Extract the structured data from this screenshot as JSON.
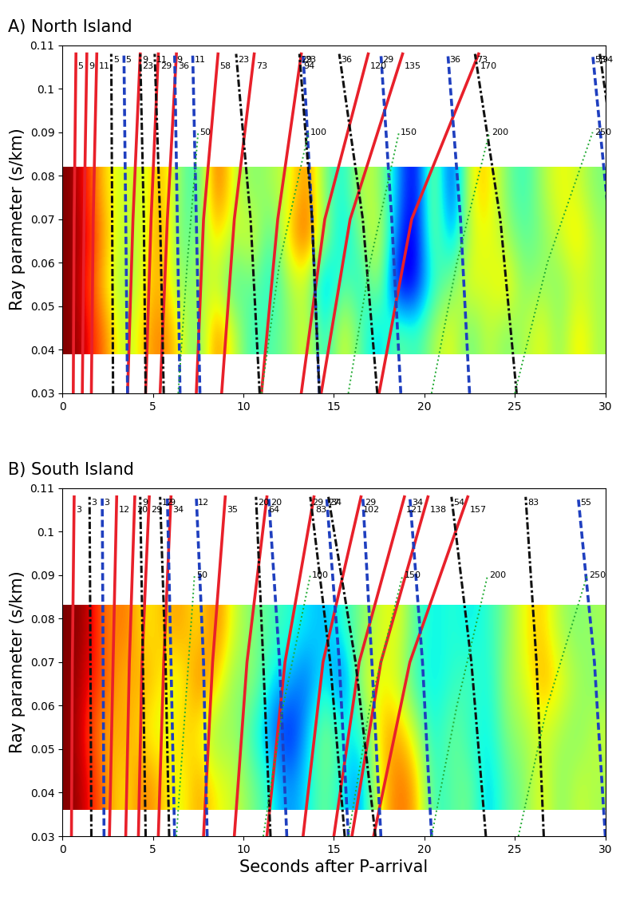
{
  "chart_data": [
    {
      "type": "heatmap",
      "title": "A) North Island",
      "y_label": "Ray parameter (s/km)",
      "xlim": [
        0,
        30
      ],
      "ylim": [
        0.03,
        0.11
      ],
      "xticks": [
        0,
        5,
        10,
        15,
        20,
        25,
        30
      ],
      "yticks": [
        0.03,
        0.04,
        0.05,
        0.06,
        0.07,
        0.08,
        0.09,
        0.1,
        0.11
      ],
      "cells_x": [
        0,
        30
      ],
      "cells_y": [
        0.039,
        0.082
      ],
      "color_range": [
        -1,
        1
      ],
      "cells": [
        [
          1.0,
          0.8,
          0.5,
          0.1,
          0.4,
          0.6,
          0.3,
          -0.1,
          0.6,
          0.2,
          -0.2,
          -0.1,
          0.0,
          0.3,
          -0.3,
          0.3,
          -0.1,
          -0.4,
          0.0,
          -0.2,
          0.1,
          0.3,
          -0.1,
          0.2,
          0.0,
          0.1,
          0.3,
          0.0,
          0.4,
          0.1
        ],
        [
          1.0,
          0.7,
          0.3,
          0.0,
          0.3,
          0.5,
          0.0,
          0.1,
          0.2,
          -0.2,
          0.0,
          -0.3,
          0.1,
          0.2,
          -0.6,
          0.0,
          -0.3,
          0.2,
          -0.9,
          -0.8,
          -0.2,
          0.0,
          0.3,
          0.2,
          0.4,
          0.0,
          0.1,
          0.0,
          0.2,
          0.1
        ],
        [
          1.0,
          0.8,
          0.4,
          0.1,
          0.2,
          0.6,
          -0.1,
          0.0,
          0.4,
          0.1,
          0.3,
          -0.2,
          0.4,
          0.7,
          0.1,
          -0.4,
          0.0,
          0.3,
          -0.6,
          -0.9,
          0.1,
          -0.5,
          0.2,
          0.3,
          0.1,
          -0.1,
          0.0,
          0.2,
          0.4,
          0.1
        ],
        [
          1.0,
          0.7,
          0.3,
          0.2,
          0.2,
          0.5,
          0.0,
          -0.2,
          0.7,
          0.2,
          0.0,
          0.1,
          0.2,
          0.6,
          0.0,
          -0.3,
          0.2,
          0.1,
          -0.4,
          -0.9,
          0.2,
          -0.8,
          0.3,
          0.4,
          0.0,
          -0.2,
          0.1,
          0.3,
          0.2,
          0.0
        ]
      ],
      "series": [
        {
          "type": "line",
          "color": "#e8202a",
          "line_style": "solid",
          "y": [
            0.03,
            0.07,
            0.108
          ],
          "labels": [
            "5",
            "9",
            "11",
            "23",
            "29",
            "36",
            "58",
            "73",
            "94",
            "120",
            "135",
            "170"
          ],
          "values": [
            [
              0.6,
              0.65,
              0.75
            ],
            [
              1.1,
              1.2,
              1.35
            ],
            [
              1.6,
              1.7,
              1.9
            ],
            [
              3.6,
              3.9,
              4.3
            ],
            [
              4.6,
              4.9,
              5.3
            ],
            [
              5.4,
              5.8,
              6.3
            ],
            [
              7.4,
              7.8,
              8.6
            ],
            [
              8.8,
              9.5,
              10.6
            ],
            [
              11.0,
              11.9,
              13.2
            ],
            [
              13.2,
              14.5,
              16.9
            ],
            [
              14.3,
              15.9,
              18.8
            ],
            [
              17.5,
              19.3,
              23.0
            ]
          ]
        },
        {
          "type": "line",
          "color": "#1f3fbf",
          "line_style": "dashed",
          "y": [
            0.03,
            0.07,
            0.108
          ],
          "labels": [
            "5",
            "9",
            "11",
            "23",
            "29",
            "36",
            "58"
          ],
          "values": [
            [
              3.6,
              3.5,
              3.4
            ],
            [
              6.5,
              6.35,
              6.2
            ],
            [
              7.6,
              7.4,
              7.2
            ],
            [
              14.2,
              13.8,
              13.3
            ],
            [
              18.7,
              18.2,
              17.6
            ],
            [
              22.5,
              22.0,
              21.3
            ],
            [
              31.0,
              30.2,
              29.3
            ]
          ]
        },
        {
          "type": "line",
          "color": "#111111",
          "line_style": "dashdot",
          "y": [
            0.03,
            0.07,
            0.108
          ],
          "labels": [
            "5",
            "9",
            "11",
            "23",
            "29",
            "36",
            "73",
            "94"
          ],
          "values": [
            [
              2.8,
              2.75,
              2.7
            ],
            [
              4.6,
              4.5,
              4.3
            ],
            [
              5.6,
              5.4,
              5.1
            ],
            [
              10.9,
              10.4,
              9.6
            ],
            [
              14.2,
              13.8,
              13.1
            ],
            [
              17.4,
              16.6,
              15.3
            ],
            [
              25.1,
              24.2,
              22.8
            ],
            [
              32.0,
              31.0,
              29.7
            ]
          ]
        },
        {
          "type": "line",
          "color": "#22aa33",
          "line_style": "dotted",
          "y": [
            0.03,
            0.06,
            0.09
          ],
          "labels": [
            "50",
            "100",
            "150",
            "200",
            "250"
          ],
          "values": [
            [
              6.4,
              6.9,
              7.5
            ],
            [
              11.0,
              12.0,
              13.6
            ],
            [
              15.8,
              17.0,
              18.6
            ],
            [
              20.4,
              21.8,
              23.6
            ],
            [
              25.0,
              26.8,
              29.3
            ]
          ]
        }
      ]
    },
    {
      "type": "heatmap",
      "title": "B) South Island",
      "x_label": "Seconds after P-arrival",
      "y_label": "Ray parameter (s/km)",
      "xlim": [
        0,
        30
      ],
      "ylim": [
        0.03,
        0.11
      ],
      "xticks": [
        0,
        5,
        10,
        15,
        20,
        25,
        30
      ],
      "yticks": [
        0.03,
        0.04,
        0.05,
        0.06,
        0.07,
        0.08,
        0.09,
        0.1,
        0.11
      ],
      "cells_x": [
        0,
        30
      ],
      "cells_y": [
        0.036,
        0.083
      ],
      "color_range": [
        -1,
        1
      ],
      "cells": [
        [
          1.0,
          0.8,
          0.5,
          0.3,
          0.6,
          0.4,
          0.2,
          0.5,
          0.3,
          0.2,
          0.0,
          -0.2,
          -0.5,
          -0.3,
          0.0,
          -0.3,
          -0.5,
          0.3,
          0.6,
          0.5,
          -0.2,
          -0.1,
          0.0,
          -0.4,
          -0.1,
          0.0,
          0.3,
          0.0,
          0.2,
          0.1
        ],
        [
          1.0,
          0.7,
          0.4,
          0.5,
          0.3,
          0.2,
          0.4,
          0.3,
          0.0,
          0.1,
          -0.2,
          -0.5,
          -0.8,
          -0.4,
          0.1,
          -0.2,
          -0.3,
          0.4,
          0.5,
          0.2,
          -0.3,
          0.0,
          -0.2,
          -0.3,
          0.0,
          0.1,
          0.2,
          0.1,
          0.0,
          0.2
        ],
        [
          1.0,
          0.8,
          0.6,
          0.4,
          0.5,
          0.3,
          0.2,
          0.6,
          0.4,
          0.0,
          0.1,
          -0.3,
          -0.4,
          -0.6,
          -0.2,
          -0.7,
          0.2,
          0.3,
          0.2,
          -0.2,
          -0.3,
          -0.2,
          -0.1,
          -0.3,
          0.1,
          0.2,
          0.5,
          0.3,
          0.1,
          0.0
        ],
        [
          1.0,
          0.9,
          0.5,
          0.6,
          0.3,
          0.4,
          0.5,
          0.3,
          0.6,
          0.2,
          0.0,
          -0.1,
          -0.2,
          -0.3,
          -0.4,
          -0.2,
          0.0,
          0.2,
          0.3,
          -0.1,
          -0.3,
          -0.2,
          -0.3,
          -0.2,
          0.0,
          0.3,
          0.4,
          0.1,
          0.0,
          0.1
        ]
      ],
      "series": [
        {
          "type": "line",
          "color": "#e8202a",
          "line_style": "solid",
          "y": [
            0.03,
            0.07,
            0.108
          ],
          "labels": [
            "3",
            "12",
            "20",
            "29",
            "34",
            "35",
            "64",
            "83",
            "102",
            "121",
            "138",
            "157"
          ],
          "values": [
            [
              0.5,
              0.55,
              0.65
            ],
            [
              2.6,
              2.8,
              3.0
            ],
            [
              3.5,
              3.7,
              4.0
            ],
            [
              4.2,
              4.4,
              4.8
            ],
            [
              5.3,
              5.6,
              6.0
            ],
            [
              7.8,
              8.3,
              9.0
            ],
            [
              9.5,
              10.2,
              11.3
            ],
            [
              11.3,
              12.3,
              13.9
            ],
            [
              13.3,
              14.4,
              16.5
            ],
            [
              15.0,
              16.4,
              18.9
            ],
            [
              16.0,
              17.6,
              20.2
            ],
            [
              17.2,
              19.2,
              22.4
            ]
          ]
        },
        {
          "type": "line",
          "color": "#1f3fbf",
          "line_style": "dashed",
          "y": [
            0.03,
            0.07,
            0.108
          ],
          "labels": [
            "3",
            "9",
            "12",
            "20",
            "27",
            "29",
            "34",
            "55"
          ],
          "values": [
            [
              2.3,
              2.25,
              2.2
            ],
            [
              6.2,
              6.0,
              5.8
            ],
            [
              8.0,
              7.8,
              7.4
            ],
            [
              12.4,
              12.0,
              11.4
            ],
            [
              15.8,
              15.3,
              14.6
            ],
            [
              17.6,
              17.1,
              16.6
            ],
            [
              20.4,
              19.9,
              19.2
            ],
            [
              30.0,
              29.4,
              28.5
            ]
          ]
        },
        {
          "type": "line",
          "color": "#111111",
          "line_style": "dashdot",
          "y": [
            0.03,
            0.07,
            0.108
          ],
          "labels": [
            "3",
            "9",
            "12",
            "20",
            "29",
            "34",
            "54",
            "83"
          ],
          "values": [
            [
              1.6,
              1.55,
              1.5
            ],
            [
              4.6,
              4.45,
              4.3
            ],
            [
              5.9,
              5.7,
              5.4
            ],
            [
              11.5,
              11.1,
              10.7
            ],
            [
              15.6,
              14.8,
              13.7
            ],
            [
              17.3,
              16.2,
              14.7
            ],
            [
              23.4,
              22.6,
              21.5
            ],
            [
              26.6,
              26.2,
              25.6
            ]
          ]
        },
        {
          "type": "line",
          "color": "#22aa33",
          "line_style": "dotted",
          "y": [
            0.03,
            0.06,
            0.09
          ],
          "labels": [
            "50",
            "100",
            "150",
            "200",
            "250"
          ],
          "values": [
            [
              6.3,
              6.8,
              7.3
            ],
            [
              11.1,
              12.2,
              13.7
            ],
            [
              15.8,
              17.0,
              18.8
            ],
            [
              20.4,
              21.8,
              23.5
            ],
            [
              25.2,
              26.8,
              29.0
            ]
          ]
        }
      ]
    }
  ]
}
